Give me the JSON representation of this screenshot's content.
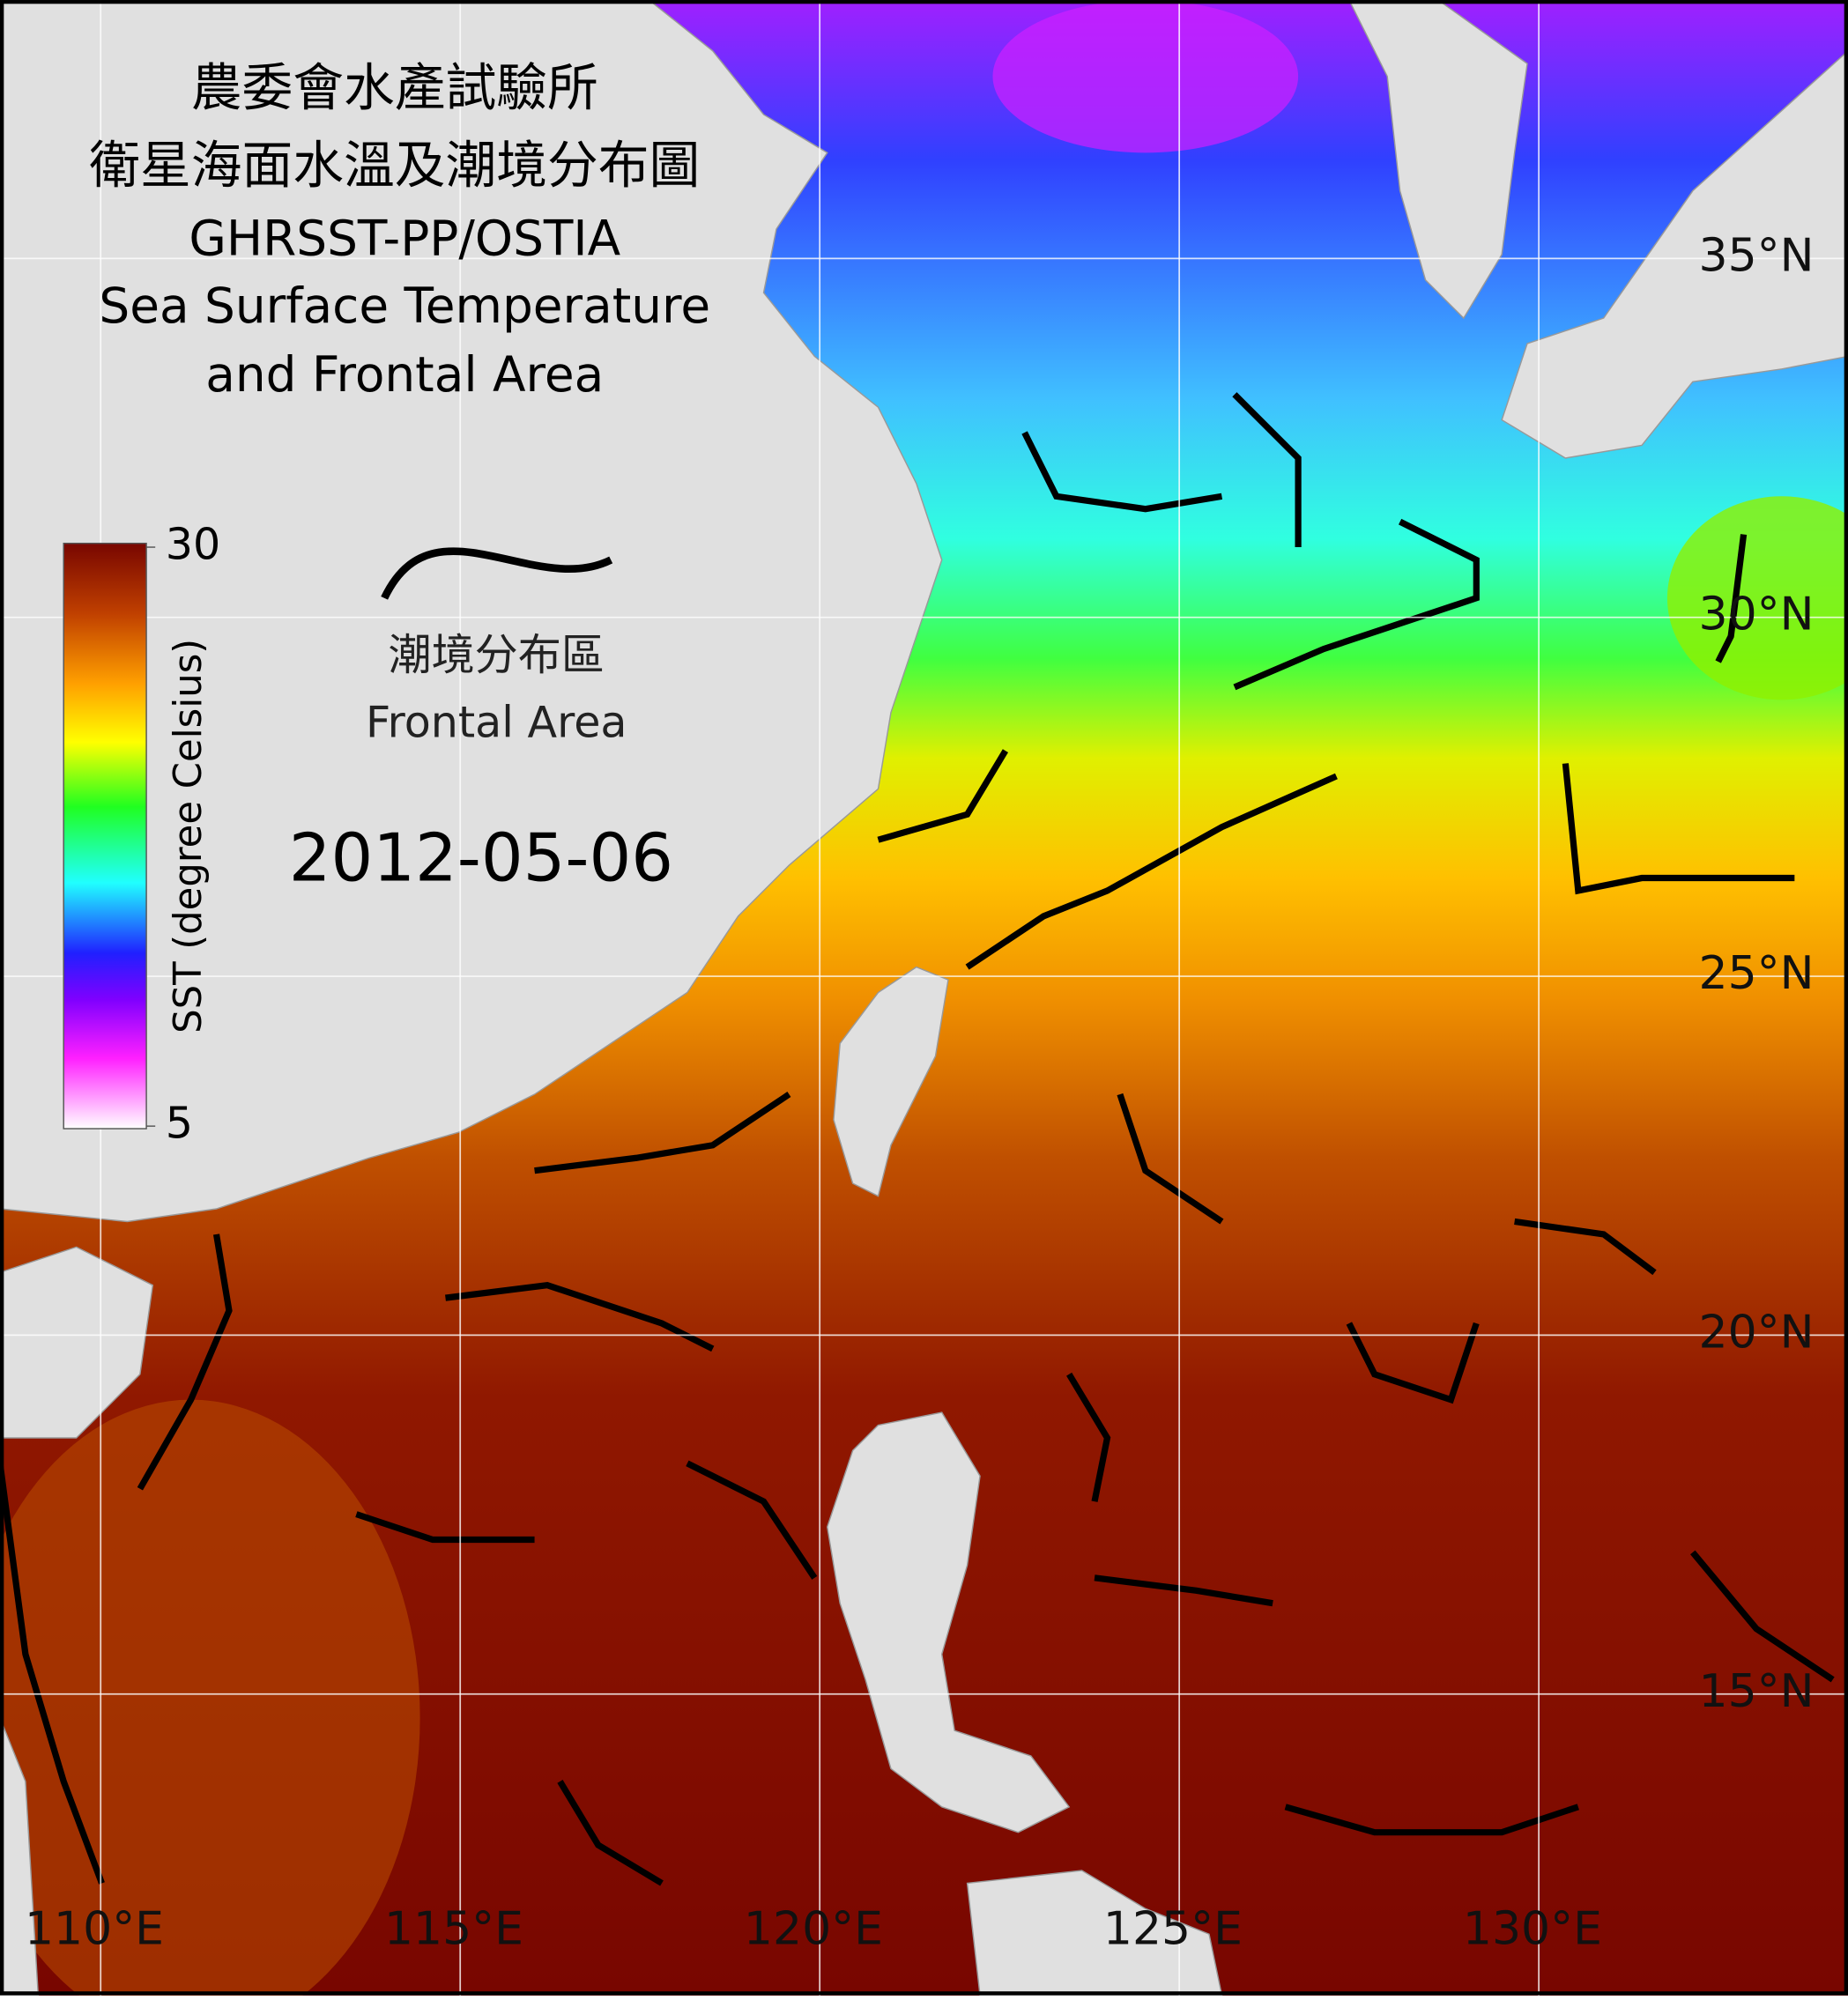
{
  "title_lines": [
    "農委會水產試驗所",
    "衛星海面水溫及潮境分布圖",
    "GHRSST-PP/OSTIA",
    "Sea Surface Temperature",
    "and Frontal Area"
  ],
  "legend": {
    "label_zh": "潮境分布區",
    "label_en": "Frontal Area"
  },
  "date": "2012-05-06",
  "colorbar": {
    "label": "SST (degree Celsius)",
    "lim": [
      5,
      30
    ],
    "ticks": [
      5,
      30
    ]
  },
  "map": {
    "xlim": [
      108.6,
      134.3
    ],
    "ylim": [
      10.8,
      38.6
    ],
    "xticks": [
      {
        "value": 110,
        "label": "110°E"
      },
      {
        "value": 115,
        "label": "115°E"
      },
      {
        "value": 120,
        "label": "120°E"
      },
      {
        "value": 125,
        "label": "125°E"
      },
      {
        "value": 130,
        "label": "130°E"
      }
    ],
    "yticks": [
      {
        "value": 15,
        "label": "15°N"
      },
      {
        "value": 20,
        "label": "20°N"
      },
      {
        "value": 25,
        "label": "25°N"
      },
      {
        "value": 30,
        "label": "30°N"
      },
      {
        "value": 35,
        "label": "35°N"
      }
    ]
  }
}
